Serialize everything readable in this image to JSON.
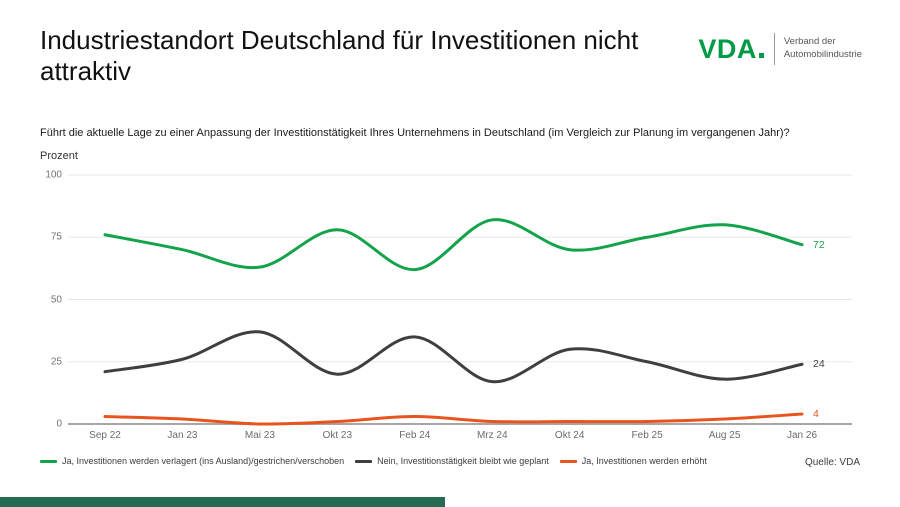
{
  "page": {
    "title": "Industriestandort Deutschland für Investitionen nicht attraktiv",
    "question": "Führt die aktuelle Lage zu einer Anpassung der Investitionstätigkeit Ihres Unternehmens in Deutschland (im Vergleich zur Planung im vergangenen Jahr)?",
    "source": "Quelle: VDA"
  },
  "logo": {
    "wordmark": "VDA",
    "org_line1": "Verband der",
    "org_line2": "Automobilindustrie",
    "green": "#009B45"
  },
  "chart_data": {
    "type": "line",
    "title": "Industriestandort Deutschland für Investitionen nicht attraktiv",
    "xlabel": "",
    "ylabel": "Prozent",
    "ylim": [
      0,
      100
    ],
    "yticks": [
      0,
      25,
      50,
      75,
      100
    ],
    "grid": true,
    "legend_position": "bottom",
    "categories": [
      "Sep 22",
      "Jan 23",
      "Mai 23",
      "Okt 23",
      "Feb 24",
      "Mrz 24",
      "Okt 24",
      "Feb 25",
      "Aug 25",
      "Jan 26"
    ],
    "series": [
      {
        "name": "Ja, Investitionen werden verlagert (ins Ausland)/gestrichen/verschoben",
        "color": "#13A34B",
        "values": [
          76,
          70,
          63,
          78,
          62,
          82,
          70,
          75,
          80,
          72
        ],
        "end_label": "72"
      },
      {
        "name": "Nein, Investitionstätigkeit bleibt wie geplant",
        "color": "#3F3F3F",
        "values": [
          21,
          26,
          37,
          20,
          35,
          17,
          30,
          25,
          18,
          24
        ],
        "end_label": "24"
      },
      {
        "name": "Ja, Investitionen werden erhöht",
        "color": "#E8541D",
        "values": [
          3,
          2,
          0,
          1,
          3,
          1,
          1,
          1,
          2,
          4
        ],
        "end_label": "4"
      }
    ]
  }
}
